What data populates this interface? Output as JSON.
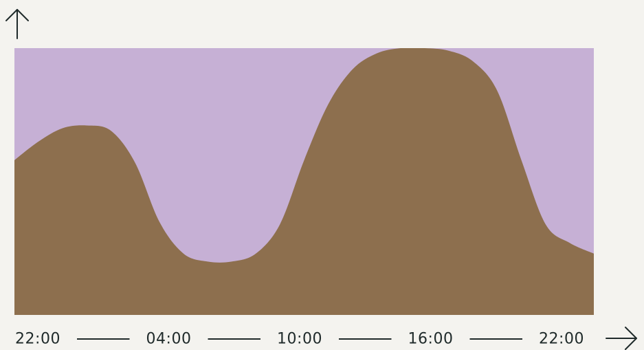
{
  "chart_data": {
    "type": "area",
    "title": "",
    "xlabel": "",
    "ylabel": "",
    "x": [
      "22:00",
      "23:00",
      "00:00",
      "01:00",
      "02:00",
      "03:00",
      "04:00",
      "05:00",
      "06:00",
      "07:00",
      "08:00",
      "09:00",
      "10:00",
      "11:00",
      "12:00",
      "13:00",
      "14:00",
      "15:00",
      "16:00",
      "17:00",
      "18:00",
      "19:00",
      "20:00",
      "21:00",
      "22:00"
    ],
    "series": [
      {
        "values": [
          58,
          65,
          70,
          71,
          69,
          57,
          35,
          23,
          20,
          20,
          23,
          34,
          58,
          79,
          92,
          98,
          100,
          100,
          99,
          95,
          84,
          58,
          34,
          27,
          23
        ]
      }
    ],
    "x_ticks": [
      "22:00",
      "04:00",
      "10:00",
      "16:00",
      "22:00"
    ],
    "ylim": [
      0,
      100
    ],
    "grid": false,
    "legend": "none",
    "colors": {
      "background": "#f4f3ef",
      "plot_background": "#c6b0d5",
      "area_fill": "#8d6f4e",
      "axis": "#1f2a2a"
    },
    "axis_icons": {
      "y": "arrow-up-icon",
      "x": "arrow-right-icon"
    }
  }
}
